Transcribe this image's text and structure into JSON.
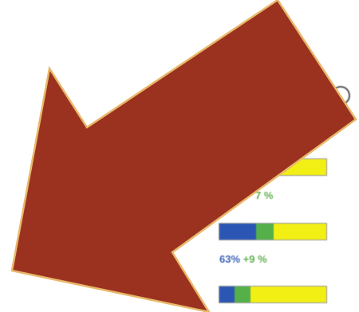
{
  "rows": [
    {
      "pct": "",
      "delta": "7 %",
      "blue_fraction": 0.0,
      "green_fraction": 0.0,
      "yellow_fraction": 1.0
    },
    {
      "pct": "63%",
      "delta": "+9 %",
      "blue_fraction": 0.34,
      "green_fraction": 0.17,
      "yellow_fraction": 0.49
    },
    {
      "pct": "",
      "delta": "",
      "blue_fraction": 0.14,
      "green_fraction": 0.15,
      "yellow_fraction": 0.71
    }
  ],
  "colors": {
    "arrow_fill": "#9b3220",
    "arrow_stroke": "#e8b86a",
    "bar_blue": "#2b56b4",
    "bar_green": "#55b04a",
    "bar_yellow": "#f2ef14",
    "pct_text": "#3e63b7",
    "delta_text": "#5fb04f"
  },
  "icons": {
    "arrow": "arrow-pointing-down-left-icon",
    "circle": "circle-icon"
  }
}
